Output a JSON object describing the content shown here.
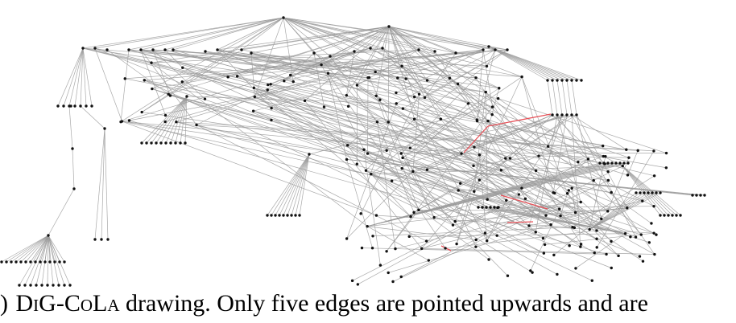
{
  "caption": {
    "label_prefix": ")",
    "method_name": "DiG-CoLa",
    "text": "drawing.  Only five edges are pointed upwards and are"
  },
  "colors": {
    "edge": "#9a9a9a",
    "upward_edge": "#e8535a",
    "node": "#111111",
    "background": "#ffffff"
  }
}
